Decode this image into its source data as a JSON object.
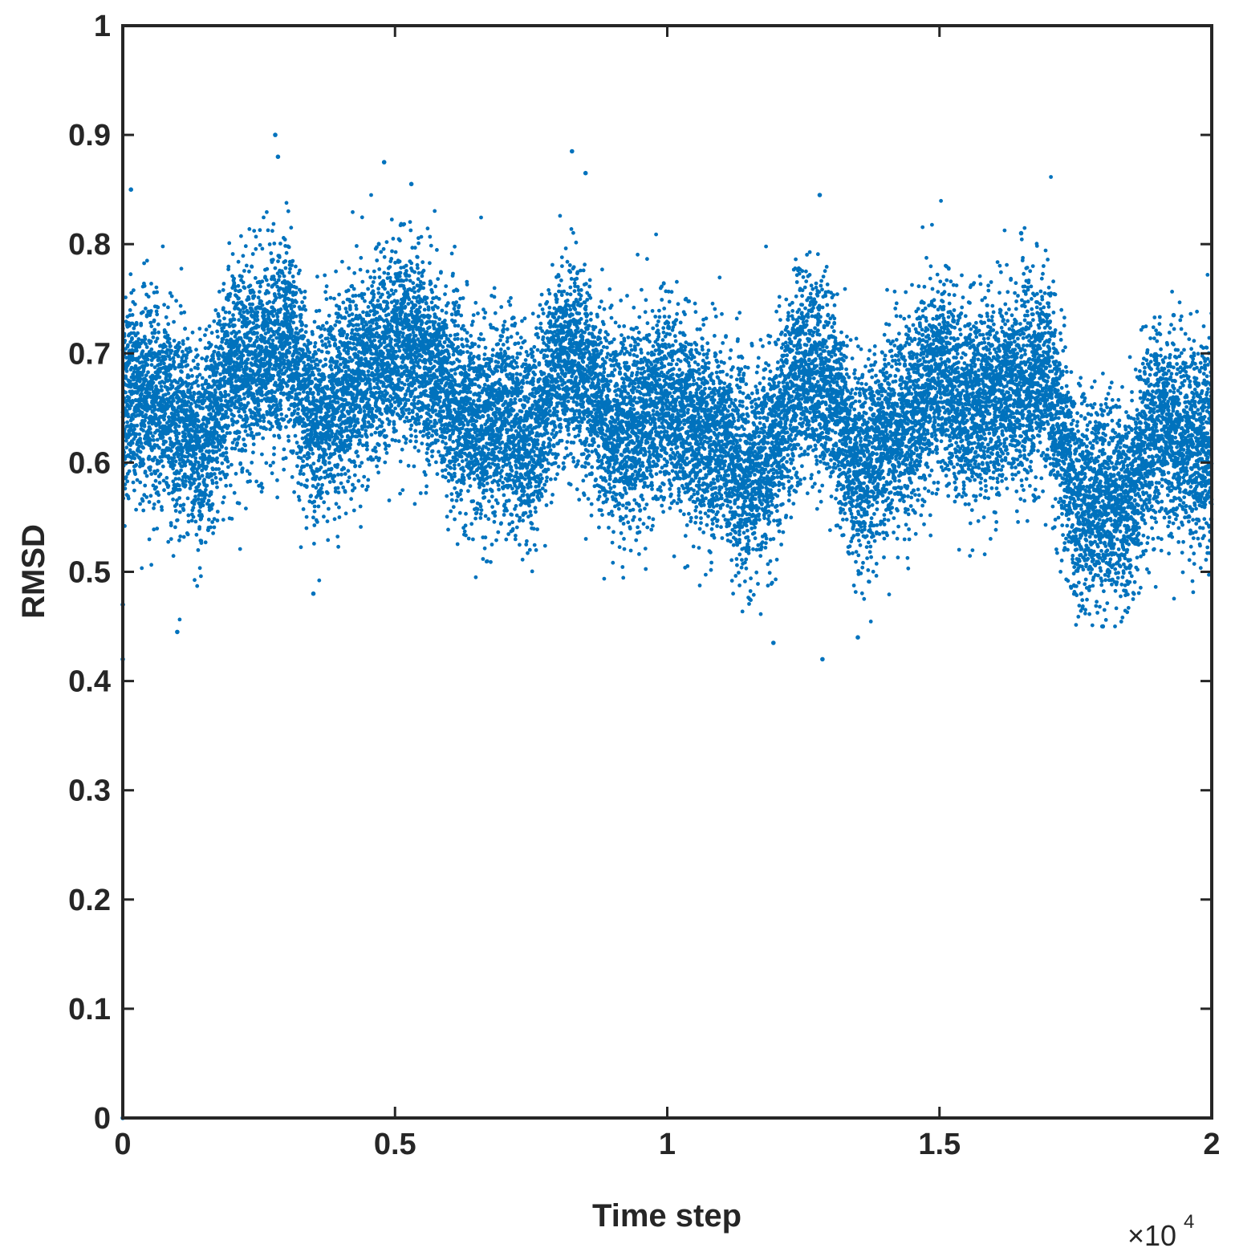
{
  "chart_data": {
    "type": "scatter",
    "title": "",
    "xlabel": "Time step",
    "ylabel": "RMSD",
    "x_exponent_label": "×10",
    "x_exponent_power": "4",
    "xlim": [
      0,
      20000
    ],
    "ylim": [
      0,
      1
    ],
    "x_ticks": [
      0,
      5000,
      10000,
      15000,
      20000
    ],
    "x_tick_labels": [
      "0",
      "0.5",
      "1",
      "1.5",
      "2"
    ],
    "y_ticks": [
      0,
      0.1,
      0.2,
      0.3,
      0.4,
      0.5,
      0.6,
      0.7,
      0.8,
      0.9,
      1
    ],
    "y_tick_labels": [
      "0",
      "0.1",
      "0.2",
      "0.3",
      "0.4",
      "0.5",
      "0.6",
      "0.7",
      "0.8",
      "0.9",
      "1"
    ],
    "grid": false,
    "marker_color": "#0072BD",
    "point_count": 20000,
    "series": [
      {
        "trend_x": [
          0,
          500,
          1000,
          1500,
          2000,
          2500,
          3000,
          3500,
          4000,
          4500,
          5000,
          5500,
          6000,
          6500,
          7000,
          7500,
          8000,
          8500,
          9000,
          9500,
          10000,
          10500,
          11000,
          11500,
          12000,
          12500,
          13000,
          13500,
          14000,
          14500,
          15000,
          15500,
          16000,
          16500,
          17000,
          17500,
          18000,
          18500,
          19000,
          19500,
          20000
        ],
        "trend_y": [
          0.66,
          0.66,
          0.64,
          0.61,
          0.69,
          0.69,
          0.71,
          0.64,
          0.66,
          0.68,
          0.71,
          0.7,
          0.66,
          0.63,
          0.64,
          0.62,
          0.69,
          0.68,
          0.63,
          0.63,
          0.66,
          0.63,
          0.62,
          0.58,
          0.62,
          0.69,
          0.67,
          0.58,
          0.63,
          0.64,
          0.68,
          0.65,
          0.66,
          0.67,
          0.68,
          0.56,
          0.57,
          0.56,
          0.64,
          0.62,
          0.61
        ],
        "spread": 0.045,
        "outliers": [
          [
            0,
            0.0
          ],
          [
            0,
            0.42
          ],
          [
            0,
            0.47
          ],
          [
            150,
            0.85
          ],
          [
            1000,
            0.445
          ],
          [
            2800,
            0.9
          ],
          [
            2850,
            0.88
          ],
          [
            3500,
            0.48
          ],
          [
            4800,
            0.875
          ],
          [
            5300,
            0.855
          ],
          [
            8250,
            0.885
          ],
          [
            8500,
            0.865
          ],
          [
            11950,
            0.435
          ],
          [
            12800,
            0.845
          ],
          [
            12850,
            0.42
          ],
          [
            13500,
            0.44
          ],
          [
            16500,
            0.81
          ],
          [
            18000,
            0.45
          ],
          [
            19300,
            0.735
          ]
        ]
      }
    ]
  }
}
